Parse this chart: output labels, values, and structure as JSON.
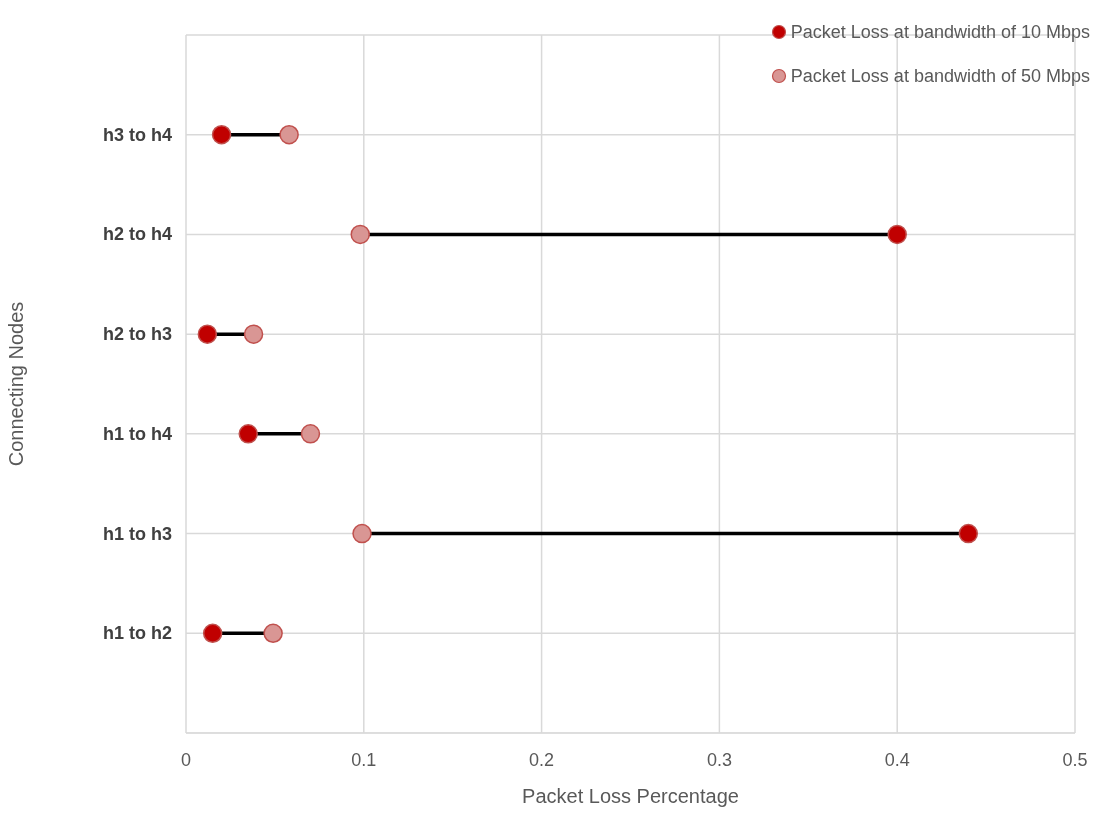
{
  "chart_data": {
    "type": "lollipop",
    "orientation": "horizontal",
    "xlabel": "Packet Loss Percentage",
    "ylabel": "Connecting Nodes",
    "categories": [
      "h3 to h4",
      "h2 to h4",
      "h2 to h3",
      "h1 to h4",
      "h1 to h3",
      "h1 to h2"
    ],
    "series": [
      {
        "name": "Packet Loss at bandwidth of 10 Mbps",
        "color": "#c00000",
        "values": [
          0.02,
          0.4,
          0.012,
          0.035,
          0.44,
          0.015
        ]
      },
      {
        "name": "Packet Loss at bandwidth of 50 Mbps",
        "color": "#d99694",
        "values": [
          0.058,
          0.098,
          0.038,
          0.07,
          0.099,
          0.049
        ]
      }
    ],
    "xlim": [
      0,
      0.5
    ],
    "xticks": [
      0,
      0.1,
      0.2,
      0.3,
      0.4,
      0.5
    ],
    "grid": true,
    "legend": "top right",
    "marker": "circle"
  }
}
